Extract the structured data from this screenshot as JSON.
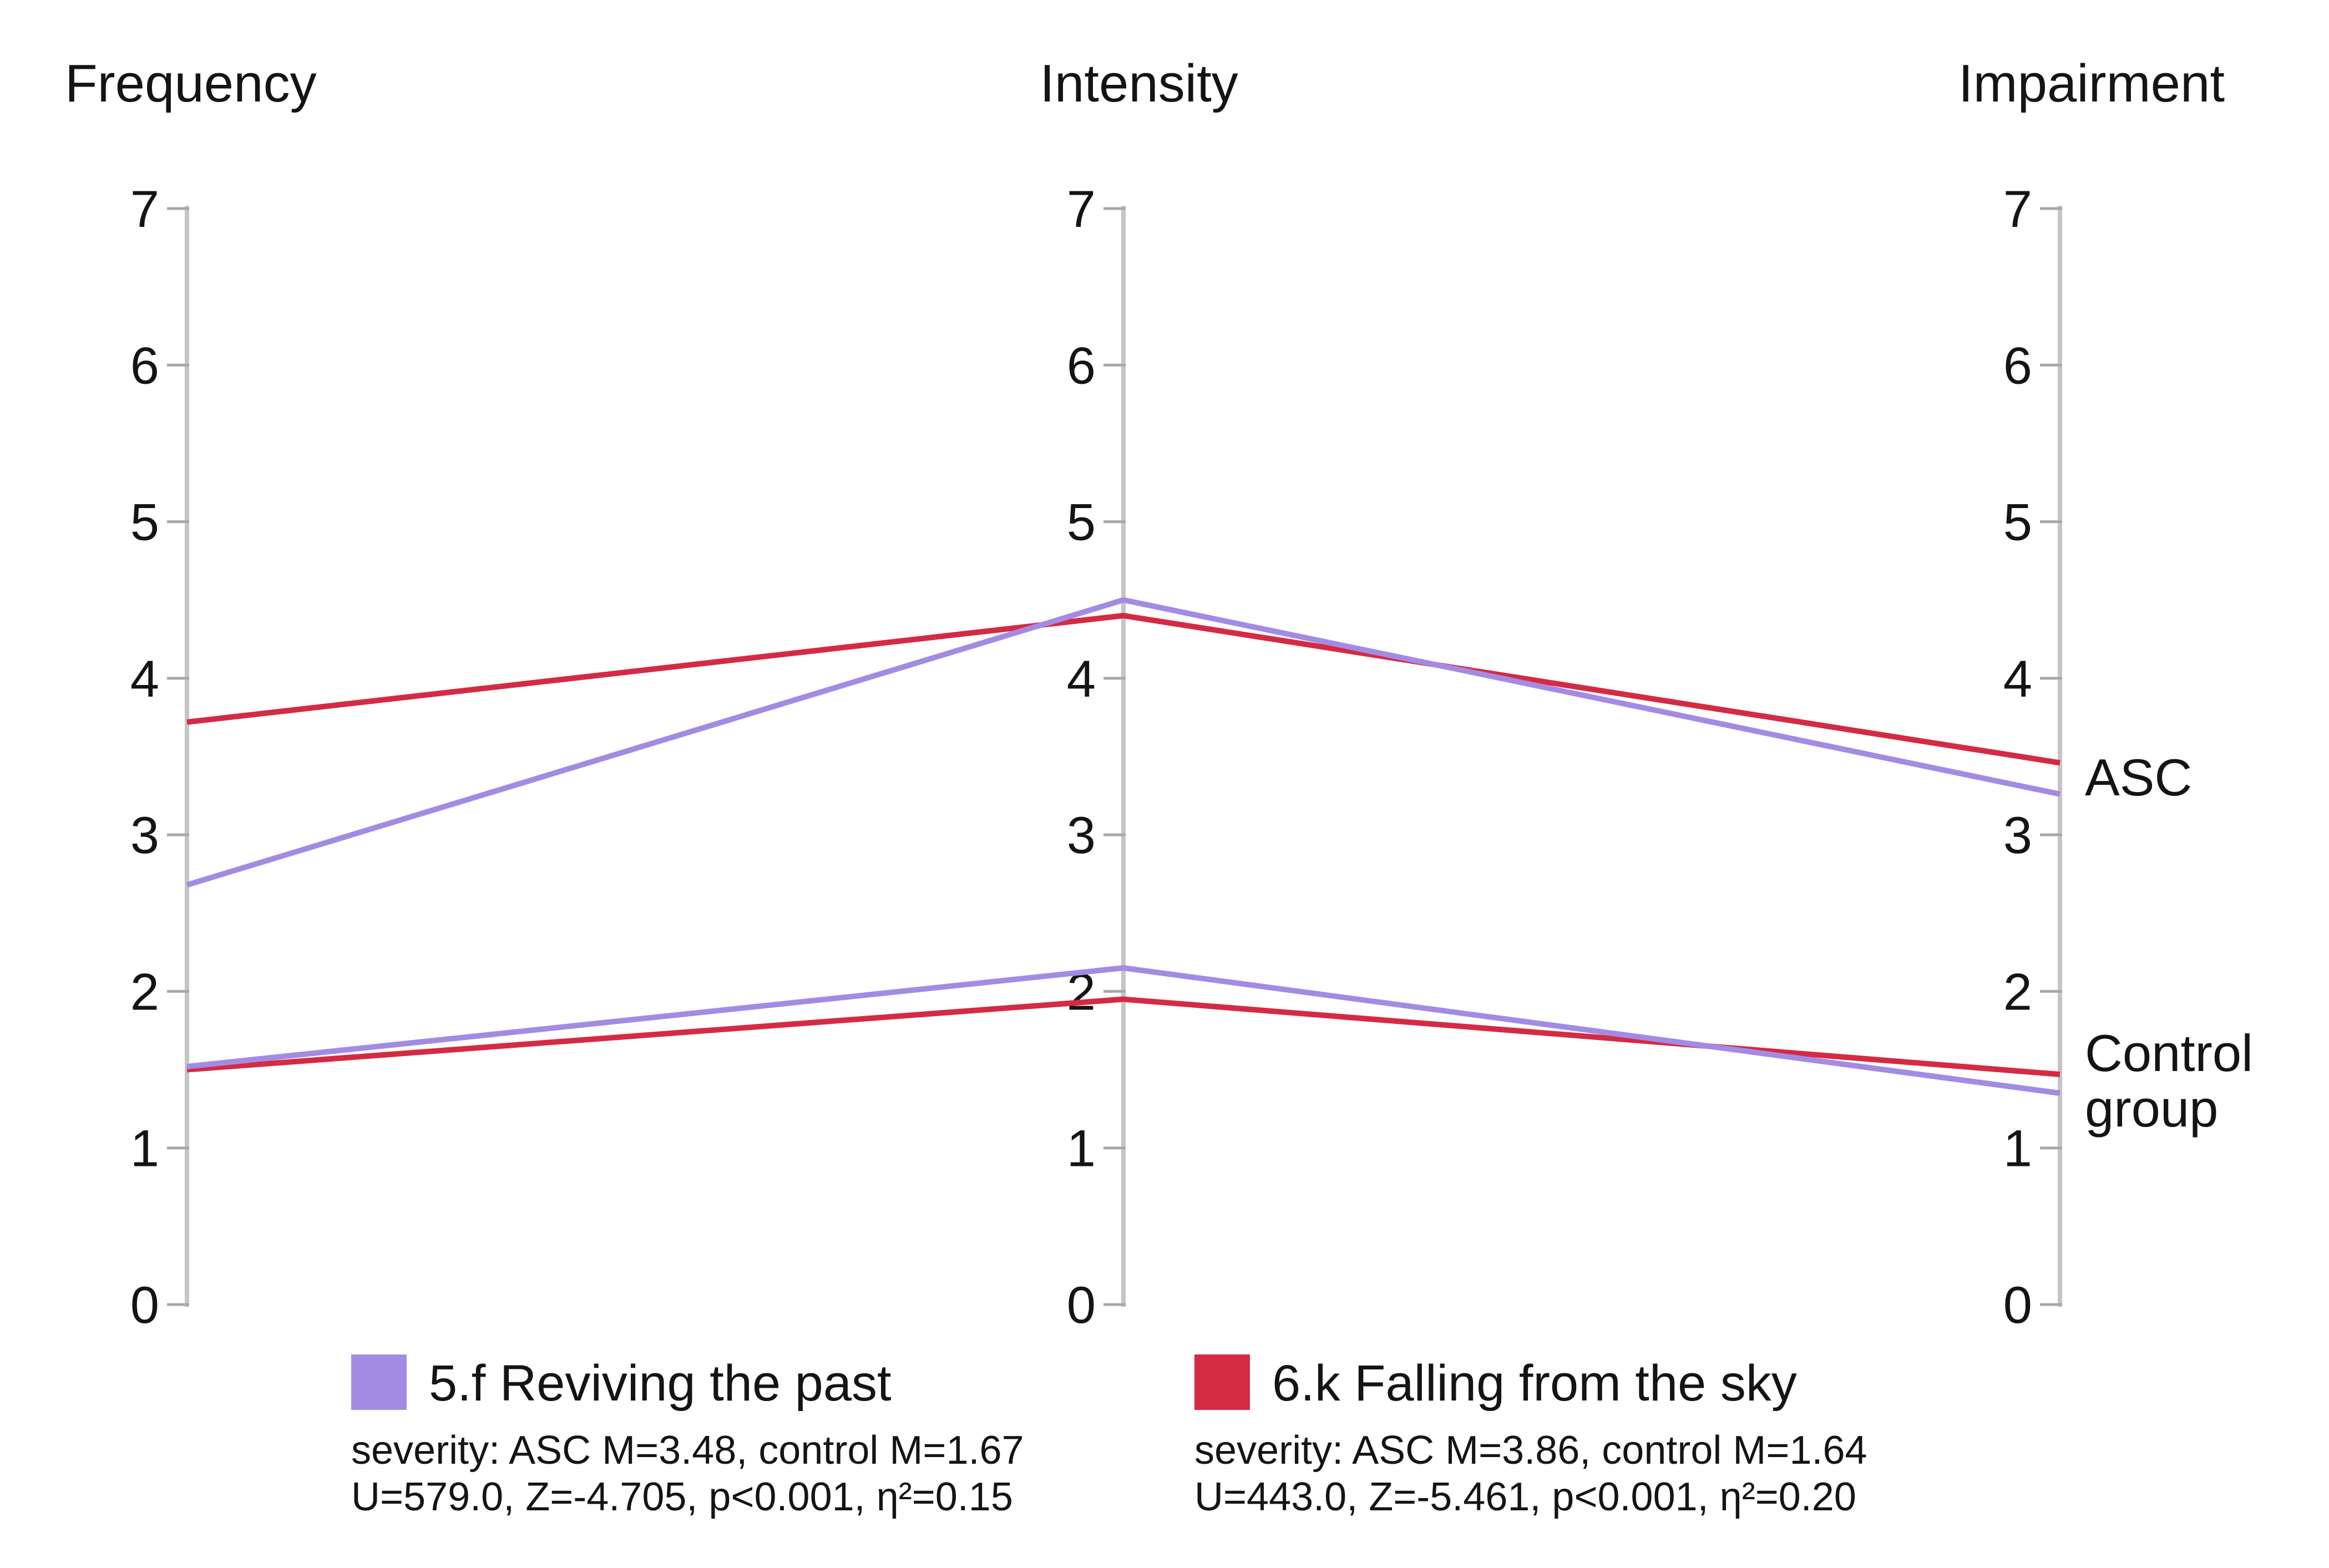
{
  "chart_data": {
    "type": "line",
    "variant": "parallel-axes",
    "title": "",
    "axes": [
      {
        "title": "Frequency",
        "x": 337
      },
      {
        "title": "Intensity",
        "x": 2025
      },
      {
        "title": "Impairment",
        "x": 3713
      }
    ],
    "y_axis": {
      "min": 0,
      "max": 7,
      "ticks": [
        0,
        1,
        2,
        3,
        4,
        5,
        6,
        7
      ],
      "grid": false
    },
    "series": [
      {
        "name": "6.k Falling from the sky — ASC",
        "condition": "6.k Falling from the sky",
        "group": "ASC",
        "color": "#d42b43",
        "values": [
          3.72,
          4.4,
          3.46
        ]
      },
      {
        "name": "6.k Falling from the sky — Control group",
        "condition": "6.k Falling from the sky",
        "group": "Control group",
        "color": "#d42b43",
        "values": [
          1.5,
          1.95,
          1.47
        ]
      },
      {
        "name": "5.f Reviving the past — ASC",
        "condition": "5.f Reviving the past",
        "group": "ASC",
        "color": "#a38be4",
        "values": [
          2.68,
          4.5,
          3.26
        ]
      },
      {
        "name": "5.f Reviving the past — Control group",
        "condition": "5.f Reviving the past",
        "group": "Control group",
        "color": "#a38be4",
        "values": [
          1.52,
          2.15,
          1.35
        ]
      }
    ],
    "group_labels": [
      {
        "text": "ASC"
      },
      {
        "text": "Control\ngroup"
      }
    ],
    "colors": {
      "purple": "#a38be4",
      "red": "#d42b43",
      "axis_line": "#c5c5c5",
      "tick_mark": "#a8a8a8",
      "text": "#141414"
    },
    "legend_position": "bottom"
  },
  "legend": [
    {
      "color": "#a38be4",
      "title": "5.f Reviving the past",
      "stats_line1": "severity: ASC M=3.48, control M=1.67",
      "stats_line2": "U=579.0, Z=-4.705, p<0.001, η²=0.15"
    },
    {
      "color": "#d42b43",
      "title": "6.k Falling from the sky",
      "stats_line1": "severity: ASC M=3.86, control M=1.64",
      "stats_line2": "U=443.0, Z=-5.461, p<0.001, η²=0.20"
    }
  ]
}
